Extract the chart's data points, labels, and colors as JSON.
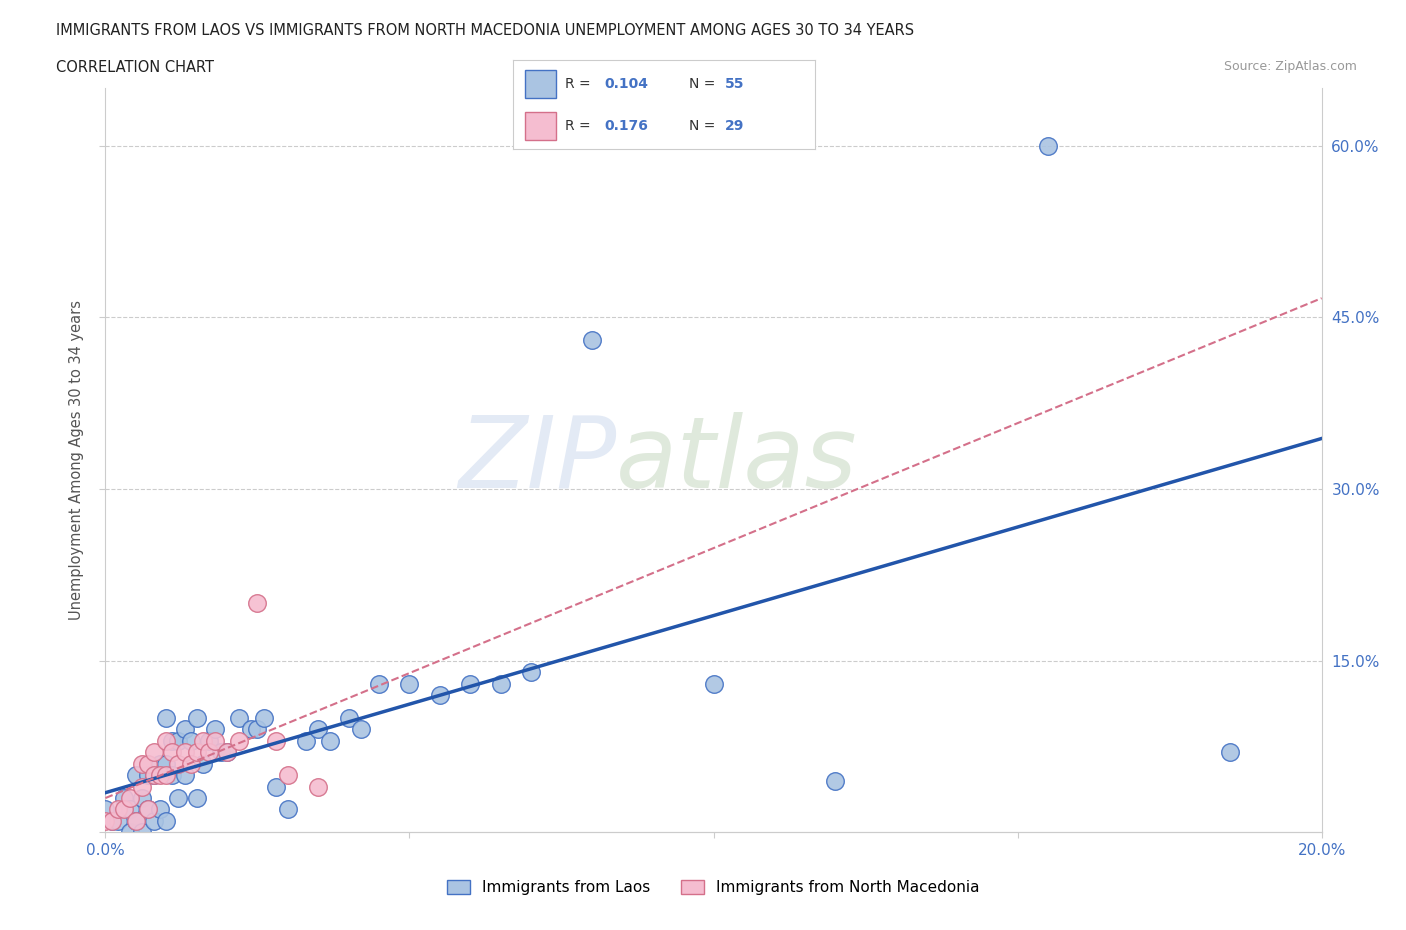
{
  "title_line1": "IMMIGRANTS FROM LAOS VS IMMIGRANTS FROM NORTH MACEDONIA UNEMPLOYMENT AMONG AGES 30 TO 34 YEARS",
  "title_line2": "CORRELATION CHART",
  "source_text": "Source: ZipAtlas.com",
  "ylabel": "Unemployment Among Ages 30 to 34 years",
  "xlim": [
    0.0,
    0.2
  ],
  "ylim": [
    0.0,
    0.65
  ],
  "ytick_values": [
    0.0,
    0.15,
    0.3,
    0.45,
    0.6
  ],
  "ytick_labels_right": [
    "",
    "15.0%",
    "30.0%",
    "45.0%",
    "60.0%"
  ],
  "xtick_positions": [
    0.0,
    0.05,
    0.1,
    0.15,
    0.2
  ],
  "xtick_labels": [
    "0.0%",
    "",
    "",
    "",
    "20.0%"
  ],
  "watermark_zip": "ZIP",
  "watermark_atlas": "atlas",
  "legend_r1": "0.104",
  "legend_n1": "55",
  "legend_r2": "0.176",
  "legend_n2": "29",
  "color_laos_fill": "#aac4e2",
  "color_laos_edge": "#4472c4",
  "color_mac_fill": "#f5bdd0",
  "color_mac_edge": "#d4708a",
  "color_line_laos": "#2255aa",
  "color_line_mac": "#d4708a",
  "color_axis_text": "#4472c4",
  "laos_x": [
    0.0,
    0.001,
    0.002,
    0.003,
    0.004,
    0.004,
    0.005,
    0.005,
    0.006,
    0.006,
    0.007,
    0.007,
    0.008,
    0.008,
    0.009,
    0.009,
    0.01,
    0.01,
    0.01,
    0.011,
    0.011,
    0.012,
    0.012,
    0.013,
    0.013,
    0.014,
    0.015,
    0.015,
    0.016,
    0.017,
    0.018,
    0.019,
    0.02,
    0.022,
    0.024,
    0.025,
    0.026,
    0.028,
    0.03,
    0.033,
    0.035,
    0.037,
    0.04,
    0.042,
    0.045,
    0.05,
    0.055,
    0.06,
    0.065,
    0.07,
    0.08,
    0.1,
    0.12,
    0.155,
    0.185
  ],
  "laos_y": [
    0.02,
    0.01,
    0.01,
    0.03,
    0.0,
    0.02,
    0.01,
    0.05,
    0.0,
    0.03,
    0.02,
    0.05,
    0.01,
    0.05,
    0.02,
    0.06,
    0.01,
    0.06,
    0.1,
    0.05,
    0.08,
    0.03,
    0.08,
    0.05,
    0.09,
    0.08,
    0.03,
    0.1,
    0.06,
    0.08,
    0.09,
    0.07,
    0.07,
    0.1,
    0.09,
    0.09,
    0.1,
    0.04,
    0.02,
    0.08,
    0.09,
    0.08,
    0.1,
    0.09,
    0.13,
    0.13,
    0.12,
    0.13,
    0.13,
    0.14,
    0.43,
    0.13,
    0.045,
    0.6,
    0.07
  ],
  "macedonia_x": [
    0.0,
    0.001,
    0.002,
    0.003,
    0.004,
    0.005,
    0.006,
    0.006,
    0.007,
    0.007,
    0.008,
    0.008,
    0.009,
    0.01,
    0.01,
    0.011,
    0.012,
    0.013,
    0.014,
    0.015,
    0.016,
    0.017,
    0.018,
    0.02,
    0.022,
    0.025,
    0.028,
    0.03,
    0.035
  ],
  "macedonia_y": [
    0.01,
    0.01,
    0.02,
    0.02,
    0.03,
    0.01,
    0.04,
    0.06,
    0.02,
    0.06,
    0.05,
    0.07,
    0.05,
    0.05,
    0.08,
    0.07,
    0.06,
    0.07,
    0.06,
    0.07,
    0.08,
    0.07,
    0.08,
    0.07,
    0.08,
    0.2,
    0.08,
    0.05,
    0.04
  ]
}
